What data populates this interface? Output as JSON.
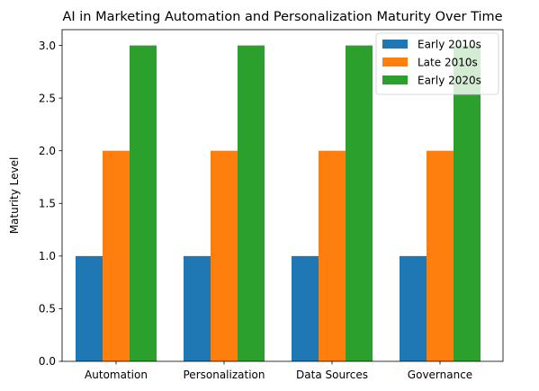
{
  "chart_data": {
    "type": "bar",
    "title": "AI in Marketing Automation and Personalization Maturity Over Time",
    "xlabel": "",
    "ylabel": "Maturity Level",
    "categories": [
      "Automation",
      "Personalization",
      "Data Sources",
      "Governance"
    ],
    "series": [
      {
        "name": "Early 2010s",
        "values": [
          1,
          1,
          1,
          1
        ],
        "color": "#1f77b4"
      },
      {
        "name": "Late 2010s",
        "values": [
          2,
          2,
          2,
          2
        ],
        "color": "#ff7f0e"
      },
      {
        "name": "Early 2020s",
        "values": [
          3,
          3,
          3,
          3
        ],
        "color": "#2ca02c"
      }
    ],
    "ylim": [
      0,
      3.15
    ],
    "yticks": [
      "0.0",
      "0.5",
      "1.0",
      "1.5",
      "2.0",
      "2.5",
      "3.0"
    ],
    "grid": false,
    "legend": "top-right"
  }
}
